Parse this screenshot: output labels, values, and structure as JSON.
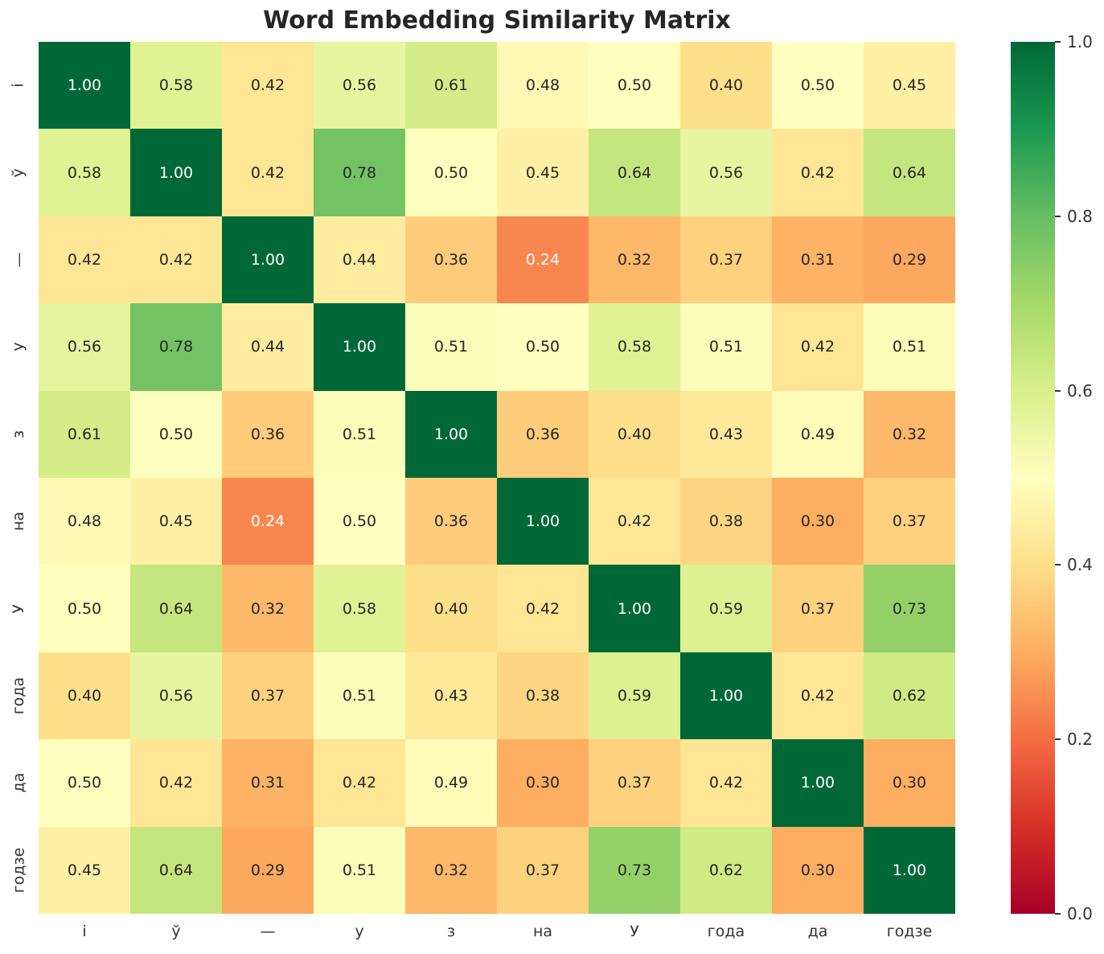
{
  "title": "Word Embedding Similarity Matrix",
  "chart_data": {
    "type": "heatmap",
    "title": "Word Embedding Similarity Matrix",
    "x_labels": [
      "і",
      "ў",
      "—",
      "у",
      "з",
      "на",
      "У",
      "года",
      "да",
      "годзе"
    ],
    "y_labels": [
      "і",
      "ў",
      "—",
      "у",
      "з",
      "на",
      "У",
      "года",
      "да",
      "годзе"
    ],
    "values": [
      [
        1.0,
        0.58,
        0.42,
        0.56,
        0.61,
        0.48,
        0.5,
        0.4,
        0.5,
        0.45
      ],
      [
        0.58,
        1.0,
        0.42,
        0.78,
        0.5,
        0.45,
        0.64,
        0.56,
        0.42,
        0.64
      ],
      [
        0.42,
        0.42,
        1.0,
        0.44,
        0.36,
        0.24,
        0.32,
        0.37,
        0.31,
        0.29
      ],
      [
        0.56,
        0.78,
        0.44,
        1.0,
        0.51,
        0.5,
        0.58,
        0.51,
        0.42,
        0.51
      ],
      [
        0.61,
        0.5,
        0.36,
        0.51,
        1.0,
        0.36,
        0.4,
        0.43,
        0.49,
        0.32
      ],
      [
        0.48,
        0.45,
        0.24,
        0.5,
        0.36,
        1.0,
        0.42,
        0.38,
        0.3,
        0.37
      ],
      [
        0.5,
        0.64,
        0.32,
        0.58,
        0.4,
        0.42,
        1.0,
        0.59,
        0.37,
        0.73
      ],
      [
        0.4,
        0.56,
        0.37,
        0.51,
        0.43,
        0.38,
        0.59,
        1.0,
        0.42,
        0.62
      ],
      [
        0.5,
        0.42,
        0.31,
        0.42,
        0.49,
        0.3,
        0.37,
        0.42,
        1.0,
        0.3
      ],
      [
        0.45,
        0.64,
        0.29,
        0.51,
        0.32,
        0.37,
        0.73,
        0.62,
        0.3,
        1.0
      ]
    ],
    "value_decimals": 2,
    "vmin": 0.0,
    "vmax": 1.0,
    "grid": false,
    "colormap": "RdYlGn",
    "colormap_anchors": [
      [
        0.0,
        "#a50026"
      ],
      [
        0.1,
        "#d73027"
      ],
      [
        0.2,
        "#f46d43"
      ],
      [
        0.3,
        "#fdae61"
      ],
      [
        0.4,
        "#fee08b"
      ],
      [
        0.5,
        "#ffffbf"
      ],
      [
        0.6,
        "#d9ef8b"
      ],
      [
        0.7,
        "#a6d96a"
      ],
      [
        0.8,
        "#66bd63"
      ],
      [
        0.9,
        "#1a9850"
      ],
      [
        1.0,
        "#006837"
      ]
    ],
    "colorbar": {
      "position": "right",
      "tick_labels_top_to_bottom": [
        "1.0",
        "0.8",
        "0.6",
        "0.4",
        "0.2",
        "0.0"
      ]
    },
    "annotation_colors": {
      "dark_text": "#262626",
      "light_text": "#ffffff",
      "luminance_threshold": 0.408
    },
    "tick_label_color": "#333333",
    "title_color": "#262626"
  }
}
